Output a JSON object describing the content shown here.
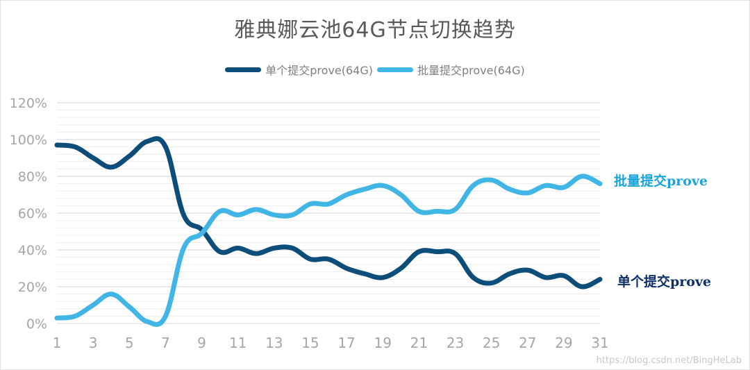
{
  "chart_data": {
    "type": "line",
    "title": "雅典娜云池64G节点切换趋势",
    "x": [
      1,
      2,
      3,
      4,
      5,
      6,
      7,
      8,
      9,
      10,
      11,
      12,
      13,
      14,
      15,
      16,
      17,
      18,
      19,
      20,
      21,
      22,
      23,
      24,
      25,
      26,
      27,
      28,
      29,
      30,
      31
    ],
    "x_tick_labels": [
      "1",
      "3",
      "5",
      "7",
      "9",
      "11",
      "13",
      "15",
      "17",
      "19",
      "21",
      "23",
      "25",
      "27",
      "29",
      "31"
    ],
    "ylim": [
      0,
      1.2
    ],
    "y_tick_labels": [
      "0%",
      "20%",
      "40%",
      "60%",
      "80%",
      "100%",
      "120%"
    ],
    "grid": true,
    "legend_position": "top",
    "series": [
      {
        "name": "单个提交prove(64G)",
        "color": "#0d4d7a",
        "values": [
          0.97,
          0.96,
          0.9,
          0.85,
          0.91,
          0.99,
          0.96,
          0.59,
          0.51,
          0.39,
          0.41,
          0.38,
          0.41,
          0.41,
          0.35,
          0.35,
          0.3,
          0.27,
          0.25,
          0.3,
          0.39,
          0.39,
          0.38,
          0.25,
          0.22,
          0.27,
          0.29,
          0.25,
          0.26,
          0.2,
          0.24
        ]
      },
      {
        "name": "批量提交prove(64G)",
        "color": "#41b6e6",
        "values": [
          0.03,
          0.04,
          0.1,
          0.16,
          0.09,
          0.01,
          0.04,
          0.41,
          0.49,
          0.61,
          0.59,
          0.62,
          0.59,
          0.59,
          0.65,
          0.65,
          0.7,
          0.73,
          0.75,
          0.7,
          0.61,
          0.61,
          0.62,
          0.75,
          0.78,
          0.73,
          0.71,
          0.75,
          0.74,
          0.8,
          0.76
        ]
      }
    ],
    "annotations": [
      {
        "text": "批量提交prove",
        "color": "#1aa3dd"
      },
      {
        "text": "单个提交prove",
        "color": "#0f2f6b"
      }
    ]
  },
  "watermark": "https://blog.csdn.net/BingHeLab"
}
